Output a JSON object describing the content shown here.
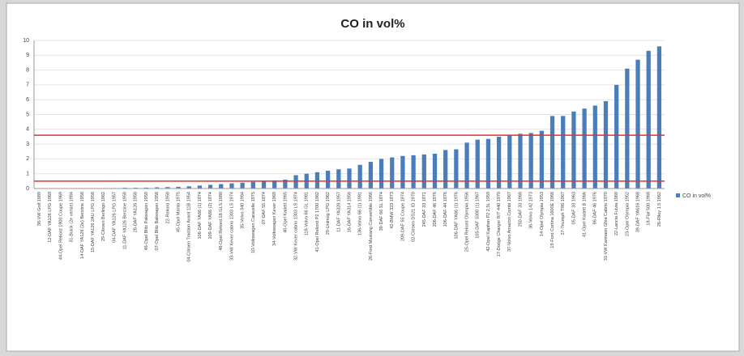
{
  "chart_data": {
    "type": "bar",
    "title": "CO in vol%",
    "categories": [
      "38-VW Golf 1989",
      "12-DAF YA126 LPG 1969",
      "44-Opel Rekord 1900 Coupe 1969",
      "31-Buick (2e versie) 1984",
      "14-DAF YA126 (2e) Benzine 1958",
      "15-DAF YA126 2AU LPG 1958",
      "29-Citroen Berlingo 1962",
      "04-DAF YA126 LPG 1957",
      "11-DAF YA126 Benzine 1958",
      "28-DAF YA126 1958",
      "46-Opel Blitz Pakwagen 1959",
      "07-Opel Blitz Bakwagen 1958",
      "22-Rekord 1958",
      "45-Opel Manta 1975",
      "04-Citroen Traction Avant 11B 1954",
      "106-DAF YA66 (1) 1974",
      "109-DAF YA66 (2) 1974",
      "48-Opel Rekord 18 GLS 1980",
      "33-VW Kever cabrio 1303 LS 1974",
      "35-Volvo 340 1984",
      "10-Volkswagen Caravelle 1975",
      "07-DAF 55 1974",
      "34-Volkswagen Kever 1969",
      "40-Opel Kadett 1965",
      "32-VW Kever cabrio 1303 LS 1974",
      "118-Volvo 66 GL 1981",
      "41-Opel Rekord P2 1700 1962",
      "29-Unimog LPG 1962",
      "11-DAF YA328 1957",
      "16-DAF YA314 1956",
      "136-Volvo 66 (1) 1981",
      "26-Ford Mustang Convertible 1966",
      "39-DAF 66 SL 1974",
      "42-BMW 323 1973",
      "209-DAF 55 Coupe 1974",
      "02-Citroen DS21 ID 1970",
      "245-DAF 33 1971",
      "206-DAF 46 1976",
      "106-DAF 44 1976",
      "106-DAF YA66 (1) 1976",
      "25-Opel Rekord Olympia 1956",
      "105-DAF 3300 (1) 1967",
      "42-Opel Kapitan P2 2,5L 1959",
      "17-Dodge Charger R/T 440 1970",
      "37-Volvo Amazon Combi 1967",
      "250-DAF 33 1968",
      "36-Volvo 142 1973",
      "14-Opel Olympia 1953",
      "19-Ford Cortina 1600E 1968",
      "27-Triumph TR6 1967",
      "05-DAF 33 1963",
      "41-Opel Kadett B 1966",
      "86-DAF 46 1976",
      "31-VW Karmann Ghia Cabrio 1970",
      "22-Lancia Fulvia 1969",
      "23-Opel Olympia 1952",
      "39-DAF YA616 1968",
      "18-Fiat 500 1968",
      "26-Riley 1.5 1962"
    ],
    "series": [
      {
        "name": "CO in vol%",
        "color": "#4a7ebb",
        "values": [
          0,
          0,
          0,
          0,
          0.02,
          0.02,
          0.03,
          0.03,
          0.05,
          0.05,
          0.06,
          0.08,
          0.1,
          0.12,
          0.15,
          0.2,
          0.25,
          0.3,
          0.35,
          0.4,
          0.45,
          0.5,
          0.55,
          0.6,
          0.9,
          1.0,
          1.1,
          1.2,
          1.3,
          1.35,
          1.6,
          1.8,
          2.0,
          2.1,
          2.2,
          2.25,
          2.3,
          2.35,
          2.6,
          2.65,
          3.1,
          3.3,
          3.35,
          3.5,
          3.6,
          3.7,
          3.75,
          3.9,
          4.9,
          4.9,
          5.2,
          5.4,
          5.6,
          5.9,
          7.0,
          8.1,
          8.7,
          9.3,
          9.6
        ]
      }
    ],
    "reference_lines": [
      3.6,
      0.5
    ],
    "reference_color": "#e03030",
    "ylim": [
      0,
      10
    ],
    "yticks": [
      0,
      1,
      2,
      3,
      4,
      5,
      6,
      7,
      8,
      9,
      10
    ],
    "grid": true
  }
}
